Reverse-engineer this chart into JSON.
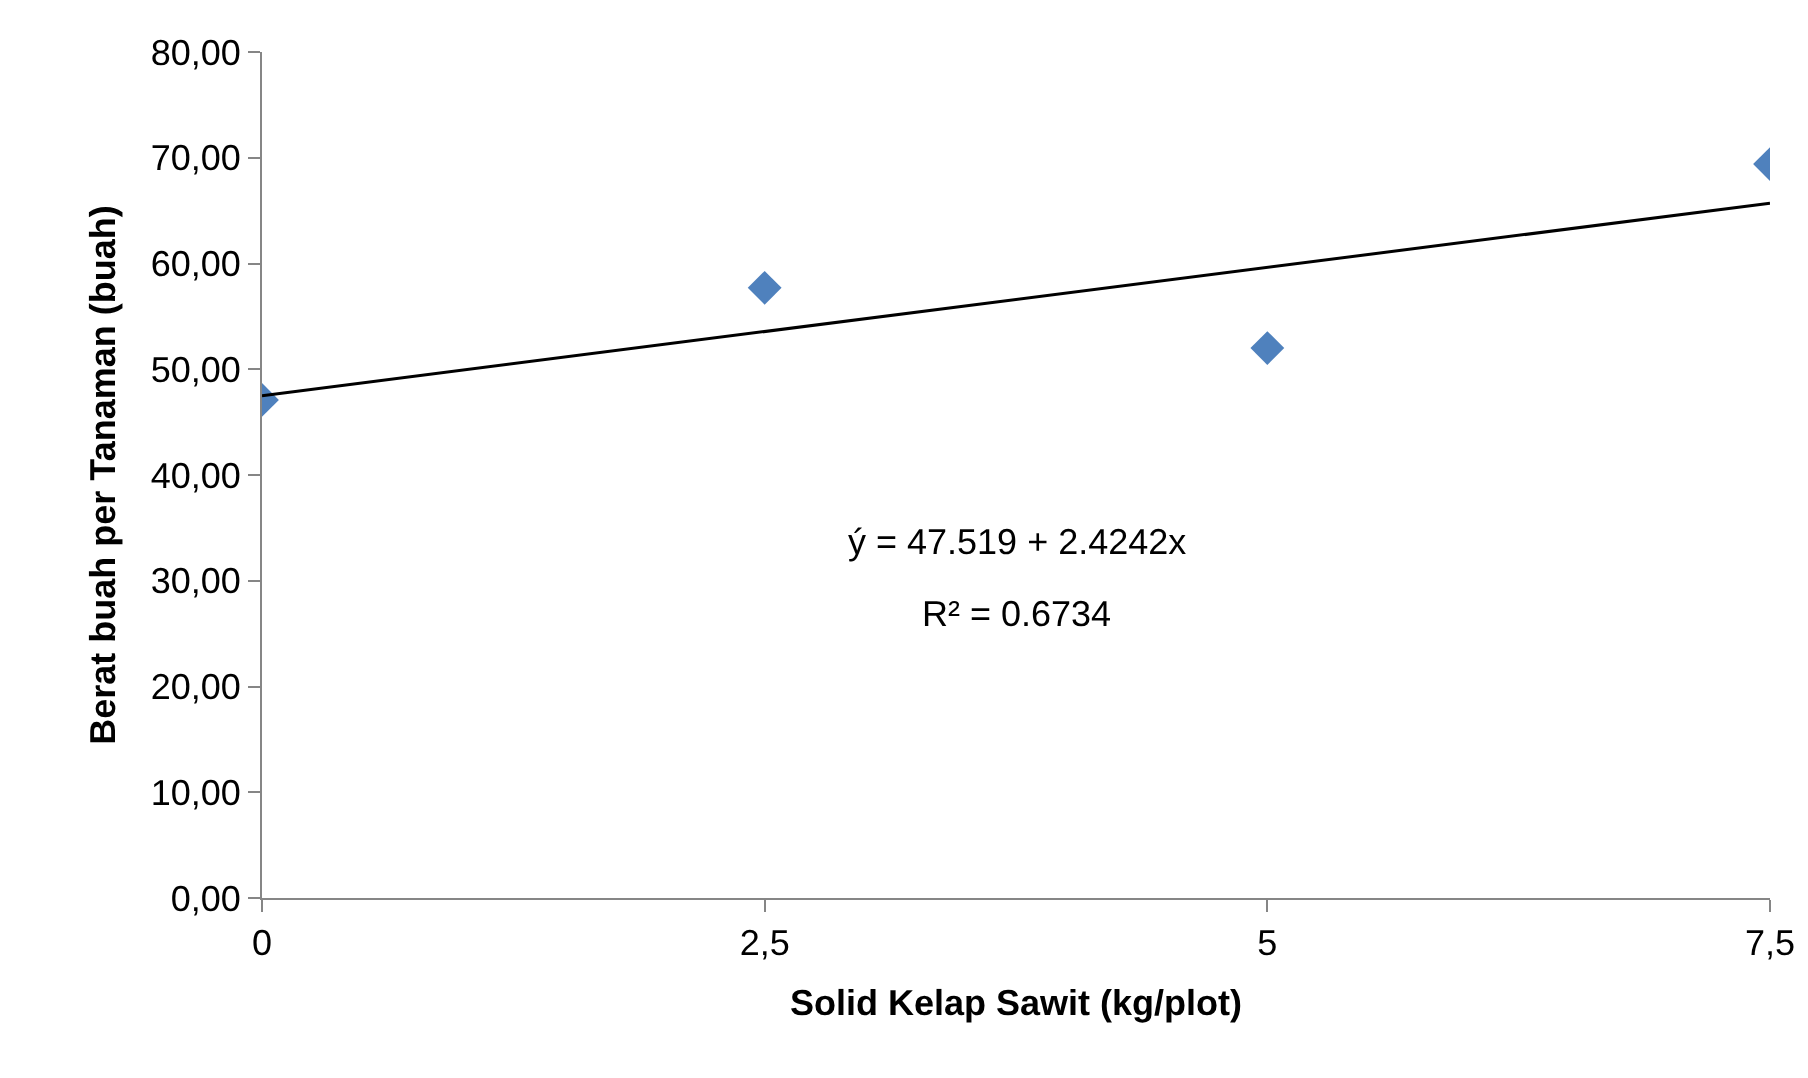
{
  "chart_data": {
    "type": "scatter",
    "xlabel": "Solid Kelap Sawit (kg/plot)",
    "ylabel": "Berat buah per Tanaman (buah)",
    "x": [
      0,
      2.5,
      5,
      7.5
    ],
    "series": [
      {
        "color": "#4f81bd",
        "marker": "diamond",
        "values": [
          47.1,
          57.7,
          52.0,
          69.4
        ]
      },
      {
        "type": "line",
        "color": "#000000",
        "line_style": "solid",
        "marker": "none",
        "x": [
          0,
          7.5
        ],
        "values": [
          47.5,
          65.7
        ]
      }
    ],
    "xlim": [
      0,
      7.5
    ],
    "xticks": [
      0,
      {
        "value": 2.5,
        "label": "2,5"
      },
      5,
      {
        "value": 7.5,
        "label": "7,5"
      }
    ],
    "ylim": [
      0,
      80
    ],
    "yticks": [
      {
        "value": 0,
        "label": "0,00"
      },
      {
        "value": 10,
        "label": "10,00"
      },
      {
        "value": 20,
        "label": "20,00"
      },
      {
        "value": 30,
        "label": "30,00"
      },
      {
        "value": 40,
        "label": "40,00"
      },
      {
        "value": 50,
        "label": "50,00"
      },
      {
        "value": 60,
        "label": "60,00"
      },
      {
        "value": 70,
        "label": "70,00"
      },
      {
        "value": 80,
        "label": "80,00"
      }
    ],
    "grid": false,
    "legend": false,
    "annotations": [
      "ý = 47.519 + 2.4242x",
      "R² = 0.6734"
    ]
  }
}
